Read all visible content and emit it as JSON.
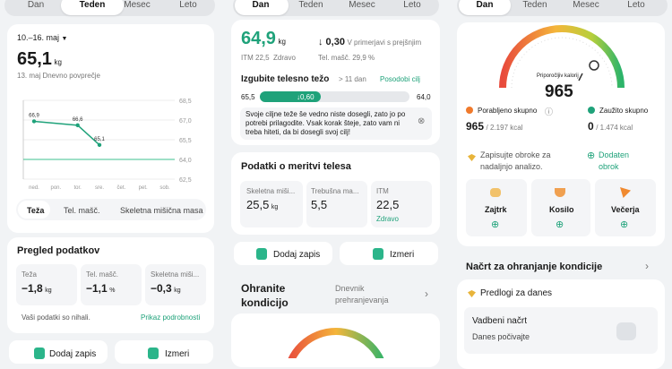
{
  "weekly": {
    "tabs": [
      "Dan",
      "Teden",
      "Mesec",
      "Leto"
    ],
    "range": "10.–16. maj",
    "weight": "65,1",
    "unit": "kg",
    "caption": "13. maj Dnevno povprečje",
    "chart_tabs": [
      "Teža",
      "Tel. mašč.",
      "Skeletna mišična masa"
    ],
    "overview": {
      "title": "Pregled podatkov",
      "items": [
        {
          "label": "Teža",
          "value": "−1,8",
          "unit": "kg"
        },
        {
          "label": "Tel. mašč.",
          "value": "−1,1",
          "unit": "%"
        },
        {
          "label": "Skeletna miši...",
          "value": "−0,3",
          "unit": "kg"
        }
      ],
      "note": "Vaši podatki so nihali.",
      "link": "Prikaz podrobnosti"
    },
    "buttons": [
      "Dodaj zapis",
      "Izmeri"
    ]
  },
  "chart_data": {
    "type": "line",
    "categories": [
      "ned.",
      "pon.",
      "tor.",
      "sre.",
      "čet.",
      "pet.",
      "sob."
    ],
    "values": [
      66.9,
      null,
      66.6,
      65.1,
      null,
      null,
      null
    ],
    "value_labels": [
      "66,9",
      null,
      "66,6",
      "65,1",
      null,
      null,
      null
    ],
    "color": "#1fa27a",
    "target": 64,
    "target_color": "#3cc08f",
    "ylim": [
      62.5,
      68.5
    ],
    "yticks": [
      {
        "value": 62.5,
        "label": "62,5"
      },
      {
        "value": 64,
        "label": "64,0"
      },
      {
        "value": 65.5,
        "label": "65,5"
      },
      {
        "value": 67,
        "label": "67,0"
      },
      {
        "value": 68.5,
        "label": "68,5"
      }
    ],
    "grid": true
  },
  "daily": {
    "tabs": [
      "Dan",
      "Teden",
      "Mesec",
      "Leto"
    ],
    "weight": "64,9",
    "unit": "kg",
    "change": "↓ 0,30",
    "change_note": "V primerjavi s prejšnjim",
    "bmi": "ITM 22,5",
    "bmi_status": "Zdravo",
    "fat": "Tel. mašč. 29,9 %",
    "goal": {
      "title": "Izgubite telesno težo",
      "days": "> 11 dan",
      "link": "Posodobi cilj",
      "start": "65,5",
      "delta": "↓0,60",
      "end": "64,0",
      "message": "Svoje ciljne teže še vedno niste dosegli, zato jo po potrebi prilagodite. Vsak korak šteje, zato vam ni treba hiteti, da bi dosegli svoj cilj!"
    },
    "measure": {
      "title": "Podatki o meritvi telesa",
      "items": [
        {
          "label": "Skeletna miši...",
          "value": "25,5",
          "unit": "kg"
        },
        {
          "label": "Trebušna ma...",
          "value": "5,5"
        },
        {
          "label": "ITM",
          "value": "22,5",
          "status": "Zdravo"
        }
      ]
    },
    "buttons": [
      "Dodaj zapis",
      "Izmeri"
    ],
    "section": {
      "title": "Ohranite kondicijo",
      "link": "Dnevnik prehranjevanja"
    }
  },
  "diet": {
    "tabs": [
      "Dan",
      "Teden",
      "Mesec",
      "Leto"
    ],
    "gauge_label": "Priporočljiv kalorij",
    "calories": "965",
    "burned": {
      "label": "Porabljeno skupno",
      "value": "965",
      "total": "/ 2.197 kcal"
    },
    "eaten": {
      "label": "Zaužito skupno",
      "value": "0",
      "total": "/ 1.474 kcal"
    },
    "prompt": "Zapisujte obroke za nadaljnjo analizo.",
    "add": "Dodaten obrok",
    "meals": [
      "Zajtrk",
      "Kosilo",
      "Večerja"
    ],
    "plan": {
      "title": "Načrt za ohranjanje kondicije",
      "suggestions": "Predlogi za danes",
      "item": "Vadbeni načrt",
      "item_sub": "Danes počivajte"
    }
  }
}
